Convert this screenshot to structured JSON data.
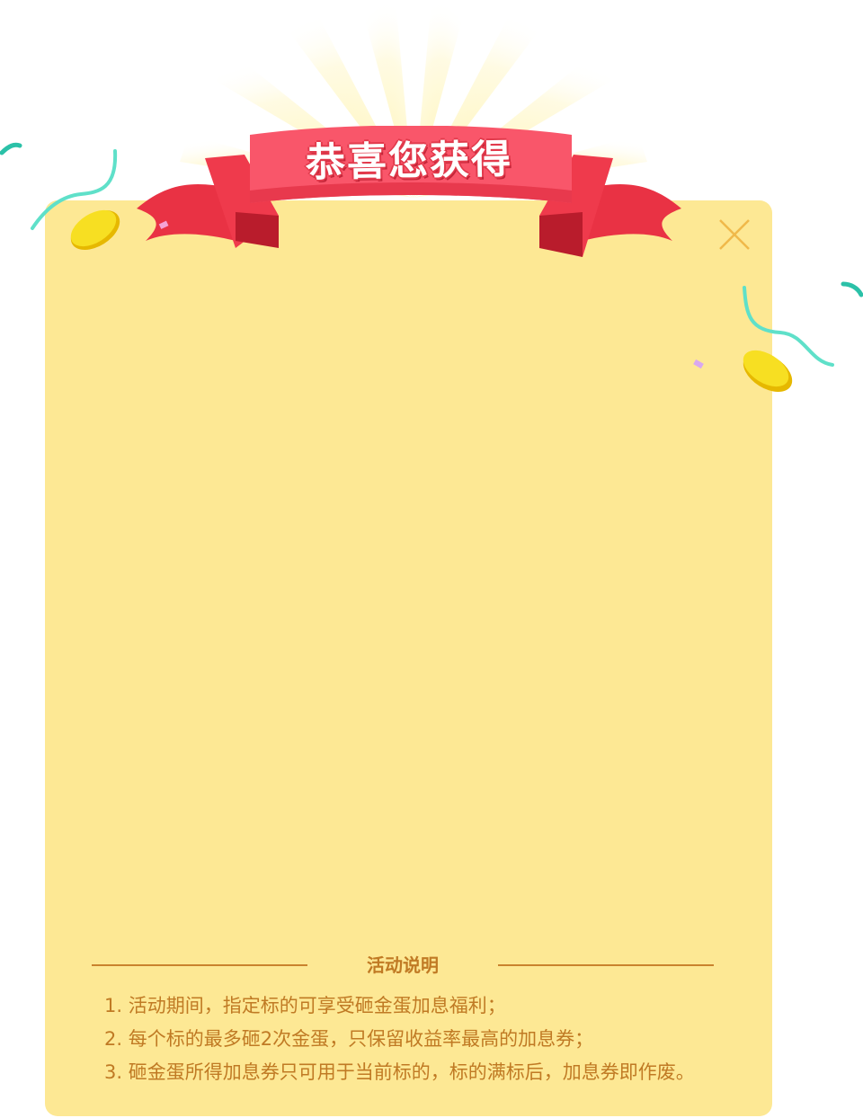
{
  "header": {
    "ribbon_title": "恭喜您获得"
  },
  "close": {
    "icon": "close-icon"
  },
  "rules": {
    "title": "活动说明",
    "items": [
      "1. 活动期间，指定标的可享受砸金蛋加息福利；",
      "2. 每个标的最多砸2次金蛋，只保留收益率最高的加息券；",
      "3. 砸金蛋所得加息券只可用于当前标的，标的满标后，加息券即作废。"
    ]
  },
  "colors": {
    "card_bg": "#fde894",
    "ribbon_red": "#f2404e",
    "text_brown": "#c07a24",
    "coin_gold": "#f7cf12",
    "streamer_teal": "#5fe0c9"
  }
}
